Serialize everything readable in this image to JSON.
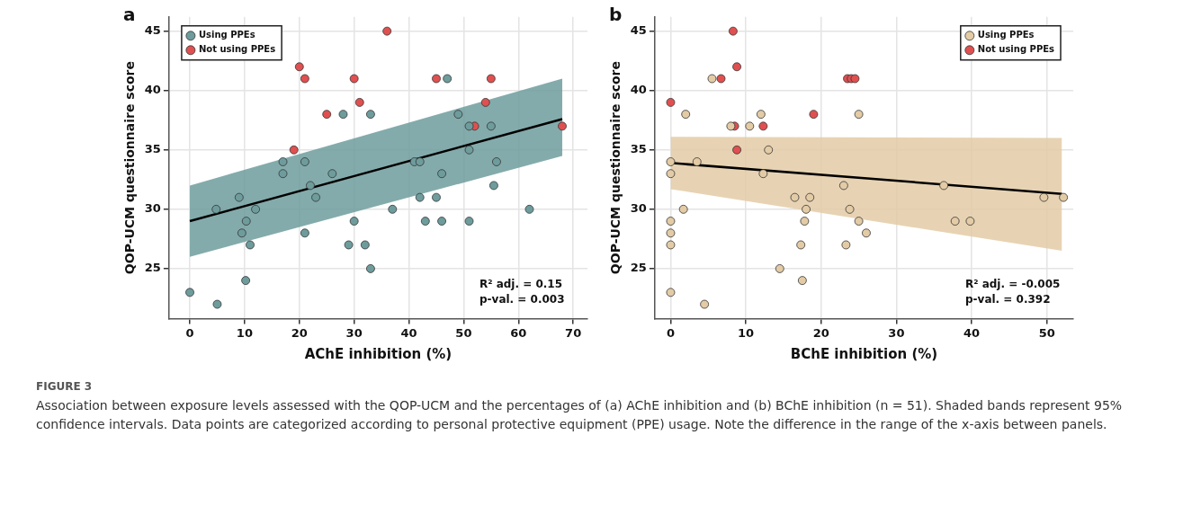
{
  "chart_data": [
    {
      "type": "scatter",
      "title": "a",
      "xlabel": "AChE inhibition (%)",
      "ylabel": "QOP-UCM questionnaire score",
      "xlim": [
        -3.8,
        72.6
      ],
      "xticks": [
        0,
        10,
        20,
        30,
        40,
        50,
        60,
        70
      ],
      "ylim": [
        20.8,
        46.2
      ],
      "yticks": [
        25,
        30,
        35,
        40,
        45
      ],
      "grid": true,
      "legend": "top left",
      "series": [
        {
          "name": "Using PPEs",
          "color": "#6e9c9c",
          "marker": "circle",
          "x": [
            0,
            5,
            4.8,
            9,
            9.5,
            10.3,
            10.2,
            11,
            12,
            17,
            17,
            21,
            21,
            22,
            23,
            26,
            28,
            29,
            30,
            32,
            33,
            33,
            37,
            41,
            42,
            42,
            43,
            45,
            46,
            46,
            47,
            49,
            51,
            51,
            51,
            55,
            55.5,
            56,
            62
          ],
          "values": [
            23,
            22,
            30,
            31,
            28,
            29,
            24,
            27,
            30,
            34,
            33,
            34,
            28,
            32,
            31,
            33,
            38,
            27,
            29,
            27,
            38,
            25,
            30,
            34,
            34,
            31,
            29,
            31,
            33,
            29,
            41,
            38,
            37,
            35,
            29,
            37,
            32,
            34,
            30
          ]
        },
        {
          "name": "Not using PPEs",
          "color": "#e05050",
          "marker": "circle",
          "x": [
            19,
            20,
            21,
            25,
            30,
            31,
            36,
            45,
            52,
            54,
            55,
            68
          ],
          "values": [
            35,
            42,
            41,
            38,
            41,
            39,
            45,
            41,
            37,
            39,
            41,
            37
          ]
        },
        {
          "type": "line",
          "color": "#000000",
          "marker": "none",
          "x": [
            0,
            68
          ],
          "values": [
            29,
            37.6
          ],
          "lower": [
            26,
            34.5
          ],
          "upper": [
            32,
            41
          ]
        }
      ],
      "annotations": [
        "R² adj. = 0.15",
        "p-val. = 0.003"
      ]
    },
    {
      "type": "scatter",
      "title": "b",
      "xlabel": "BChE inhibition (%)",
      "ylabel": "QOP-UCM questionnaire score",
      "xlim": [
        -2.1,
        53.5
      ],
      "xticks": [
        0,
        10,
        20,
        30,
        40,
        50
      ],
      "ylim": [
        20.8,
        46.2
      ],
      "yticks": [
        25,
        30,
        35,
        40,
        45
      ],
      "grid": true,
      "legend": "top right",
      "series": [
        {
          "name": "Using PPEs",
          "color": "#e3cba6",
          "marker": "circle",
          "x": [
            0,
            0,
            0,
            0,
            0,
            0,
            1.7,
            2,
            3.5,
            4.5,
            5.5,
            8,
            10.5,
            12,
            12.3,
            13,
            14.5,
            16.5,
            17.3,
            17.5,
            18,
            17.8,
            18.5,
            23,
            23.3,
            23.8,
            25,
            25,
            26,
            36.3,
            37.8,
            39.8,
            49.6,
            52.2
          ],
          "values": [
            34,
            33,
            29,
            28,
            27,
            23,
            30,
            38,
            34,
            22,
            41,
            37,
            37,
            38,
            33,
            35,
            25,
            31,
            27,
            24,
            30,
            29,
            31,
            32,
            27,
            30,
            38,
            29,
            28,
            32,
            29,
            29,
            31,
            31
          ]
        },
        {
          "name": "Not using PPEs",
          "color": "#e05050",
          "marker": "circle",
          "x": [
            0,
            6.7,
            8.3,
            8.8,
            8.5,
            8.8,
            12.3,
            19,
            23.5,
            24,
            24.5
          ],
          "values": [
            39,
            41,
            45,
            42,
            37,
            35,
            37,
            38,
            41,
            41,
            41
          ]
        },
        {
          "type": "line",
          "color": "#000000",
          "marker": "none",
          "x": [
            0,
            52
          ],
          "values": [
            33.9,
            31.3
          ],
          "lower": [
            31.7,
            26.5
          ],
          "upper": [
            36.1,
            36
          ]
        }
      ],
      "annotations": [
        "R² adj. = -0.005",
        "p-val. = 0.392",
        "FIGURE 3",
        "Association between exposure levels assessed with the QOP-UCM and the percentages of (a) AChE inhibition and (b) BChE inhibition (n = 51). Shaded bands represent 95% confidence intervals. Data points are categorized according to personal protective equipment (PPE) usage. Note the difference in the range of the x-axis between panels."
      ]
    }
  ]
}
